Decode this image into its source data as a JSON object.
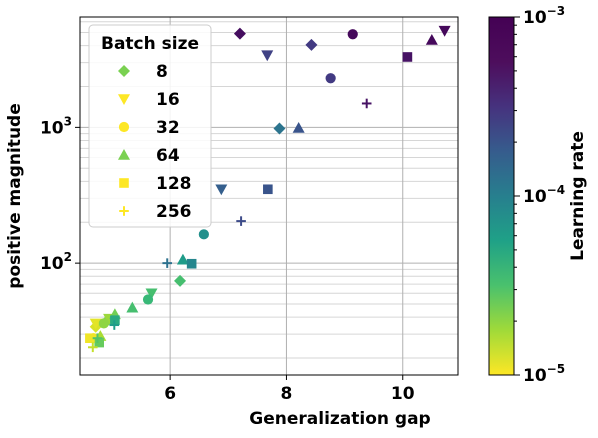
{
  "chart_data": {
    "type": "scatter",
    "xlabel": "Generalization gap",
    "ylabel": "positive magnitude",
    "xlim": [
      4.45,
      10.95
    ],
    "ylim": [
      15,
      6500
    ],
    "yscale": "log",
    "grid": true,
    "x_ticks": [
      {
        "value": 6,
        "label": "6"
      },
      {
        "value": 8,
        "label": "8"
      },
      {
        "value": 10,
        "label": "10"
      }
    ],
    "y_ticks": [
      {
        "value": 100,
        "base": "10",
        "exp": "2"
      },
      {
        "value": 1000,
        "base": "10",
        "exp": "3"
      }
    ],
    "legend": {
      "title": "Batch size",
      "position": "upper-left",
      "entries": [
        {
          "label": "8",
          "marker": "diamond"
        },
        {
          "label": "16",
          "marker": "triangle-down"
        },
        {
          "label": "32",
          "marker": "circle"
        },
        {
          "label": "64",
          "marker": "triangle-up"
        },
        {
          "label": "128",
          "marker": "square"
        },
        {
          "label": "256",
          "marker": "plus"
        }
      ]
    },
    "colorbar": {
      "label": "Learning rate",
      "scale": "log",
      "range": [
        1e-05,
        0.001
      ],
      "colormap": "viridis-reversed",
      "ticks": [
        {
          "value": 0.001,
          "base": "10",
          "exp": "−3"
        },
        {
          "value": 0.0001,
          "base": "10",
          "exp": "−4"
        },
        {
          "value": 1e-05,
          "base": "10",
          "exp": "−5"
        }
      ]
    },
    "series": [
      {
        "batch_size": 8,
        "marker": "diamond",
        "points": [
          {
            "x": 7.2,
            "y": 4900,
            "lr": 0.00085
          },
          {
            "x": 8.43,
            "y": 4050,
            "lr": 0.00045
          },
          {
            "x": 7.88,
            "y": 980,
            "lr": 0.00017
          },
          {
            "x": 6.17,
            "y": 74,
            "lr": 4e-05
          },
          {
            "x": 4.9,
            "y": 37,
            "lr": 2.5e-05
          },
          {
            "x": 4.72,
            "y": 34,
            "lr": 1.3e-05
          }
        ]
      },
      {
        "batch_size": 16,
        "marker": "triangle-down",
        "points": [
          {
            "x": 10.72,
            "y": 5150,
            "lr": 0.0009
          },
          {
            "x": 7.67,
            "y": 3400,
            "lr": 0.0004
          },
          {
            "x": 6.88,
            "y": 350,
            "lr": 0.00025
          },
          {
            "x": 5.68,
            "y": 60,
            "lr": 4e-05
          },
          {
            "x": 4.95,
            "y": 39,
            "lr": 2e-05
          },
          {
            "x": 4.72,
            "y": 36,
            "lr": 1.2e-05
          }
        ]
      },
      {
        "batch_size": 32,
        "marker": "circle",
        "points": [
          {
            "x": 9.14,
            "y": 4850,
            "lr": 0.0009
          },
          {
            "x": 8.76,
            "y": 2300,
            "lr": 0.00045
          },
          {
            "x": 6.58,
            "y": 163,
            "lr": 0.0001
          },
          {
            "x": 5.62,
            "y": 54,
            "lr": 4.5e-05
          },
          {
            "x": 4.86,
            "y": 36,
            "lr": 2.2e-05
          },
          {
            "x": 4.68,
            "y": 28,
            "lr": 1.1e-05
          }
        ]
      },
      {
        "batch_size": 64,
        "marker": "triangle-up",
        "points": [
          {
            "x": 10.5,
            "y": 4400,
            "lr": 0.0009
          },
          {
            "x": 8.21,
            "y": 990,
            "lr": 0.0003
          },
          {
            "x": 6.22,
            "y": 106,
            "lr": 8e-05
          },
          {
            "x": 5.35,
            "y": 47,
            "lr": 4e-05
          },
          {
            "x": 5.05,
            "y": 42,
            "lr": 2.7e-05
          },
          {
            "x": 4.8,
            "y": 29,
            "lr": 1.8e-05
          }
        ]
      },
      {
        "batch_size": 128,
        "marker": "square",
        "points": [
          {
            "x": 10.08,
            "y": 3300,
            "lr": 0.0008
          },
          {
            "x": 7.68,
            "y": 350,
            "lr": 0.0003
          },
          {
            "x": 6.37,
            "y": 99,
            "lr": 0.00012
          },
          {
            "x": 5.05,
            "y": 38,
            "lr": 6e-05
          },
          {
            "x": 4.78,
            "y": 26,
            "lr": 3e-05
          },
          {
            "x": 4.62,
            "y": 28,
            "lr": 1.1e-05
          }
        ]
      },
      {
        "batch_size": 256,
        "marker": "plus",
        "points": [
          {
            "x": 9.38,
            "y": 1500,
            "lr": 0.0008
          },
          {
            "x": 7.22,
            "y": 204,
            "lr": 0.00035
          },
          {
            "x": 5.95,
            "y": 100,
            "lr": 0.00018
          },
          {
            "x": 5.04,
            "y": 35,
            "lr": 8e-05
          },
          {
            "x": 4.75,
            "y": 28,
            "lr": 3.5e-05
          },
          {
            "x": 4.67,
            "y": 24,
            "lr": 1.5e-05
          }
        ]
      }
    ]
  }
}
